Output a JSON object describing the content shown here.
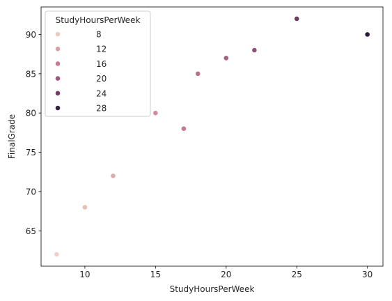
{
  "chart_data": {
    "type": "scatter",
    "xlabel": "StudyHoursPerWeek",
    "ylabel": "FinalGrade",
    "xlim": [
      6.9,
      31.1
    ],
    "ylim": [
      60.5,
      93.5
    ],
    "xticks": [
      10,
      15,
      20,
      25,
      30
    ],
    "yticks": [
      65,
      70,
      75,
      80,
      85,
      90
    ],
    "grid": false,
    "hue": "StudyHoursPerWeek",
    "points": [
      {
        "x": 8,
        "y": 62,
        "hue": 8
      },
      {
        "x": 10,
        "y": 68,
        "hue": 10
      },
      {
        "x": 12,
        "y": 72,
        "hue": 12
      },
      {
        "x": 15,
        "y": 80,
        "hue": 15
      },
      {
        "x": 17,
        "y": 78,
        "hue": 17
      },
      {
        "x": 18,
        "y": 85,
        "hue": 18
      },
      {
        "x": 20,
        "y": 87,
        "hue": 20
      },
      {
        "x": 22,
        "y": 88,
        "hue": 22
      },
      {
        "x": 25,
        "y": 92,
        "hue": 25
      },
      {
        "x": 30,
        "y": 90,
        "hue": 30
      }
    ],
    "legend": {
      "title": "StudyHoursPerWeek",
      "placement": "top-left",
      "entries": [
        {
          "label": "8",
          "color": "#ecc9c1"
        },
        {
          "label": "12",
          "color": "#dca0a4"
        },
        {
          "label": "16",
          "color": "#c57b94"
        },
        {
          "label": "20",
          "color": "#a0577f"
        },
        {
          "label": "24",
          "color": "#713a6a"
        },
        {
          "label": "28",
          "color": "#3a1f45"
        }
      ]
    },
    "hue_colormap": {
      "min": 8,
      "max": 30,
      "stops": [
        "#efd0c6",
        "#e1aeaa",
        "#cd8a9b",
        "#b06888",
        "#874a76",
        "#5b2f5f",
        "#2b1a36"
      ]
    }
  }
}
